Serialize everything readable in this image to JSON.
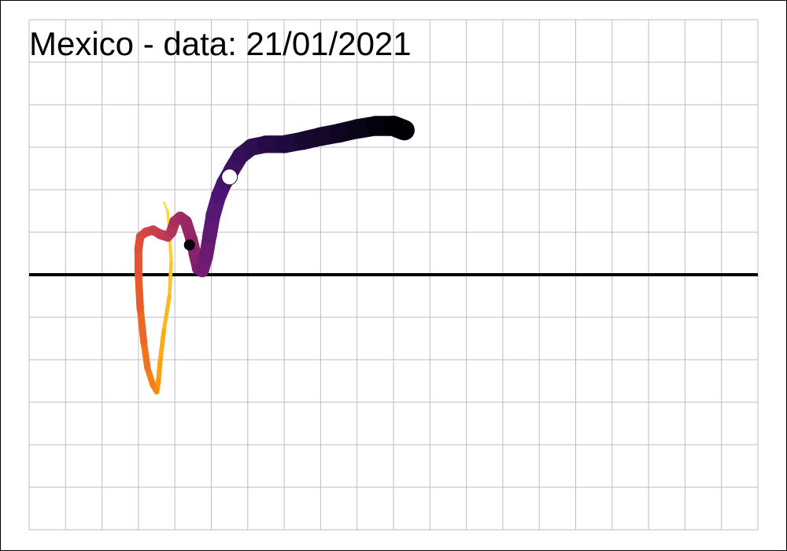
{
  "chart_data": {
    "type": "line",
    "title": "Mexico  - data: 21/01/2021",
    "xlim": [
      0,
      20
    ],
    "ylim": [
      -6,
      6
    ],
    "grid": true,
    "x_gridlines": [
      0,
      1,
      2,
      3,
      4,
      5,
      6,
      7,
      8,
      9,
      10,
      11,
      12,
      13,
      14,
      15,
      16,
      17,
      18,
      19,
      20
    ],
    "y_gridlines": [
      -6,
      -5,
      -4,
      -3,
      -2,
      -1,
      0,
      1,
      2,
      3,
      4,
      5,
      6
    ],
    "baseline_y": 0,
    "colormap": [
      "#fce34b",
      "#fba10b",
      "#e8582c",
      "#c13a52",
      "#8a226b",
      "#4f1576",
      "#1e0b3e",
      "#000004"
    ],
    "series": [
      {
        "points": [
          [
            3.7,
            1.7
          ],
          [
            3.8,
            1.5
          ],
          [
            3.85,
            1.0
          ],
          [
            3.9,
            0.3
          ],
          [
            3.85,
            -0.5
          ],
          [
            3.7,
            -1.3
          ],
          [
            3.6,
            -2.0
          ],
          [
            3.55,
            -2.5
          ],
          [
            3.5,
            -2.75
          ],
          [
            3.4,
            -2.6
          ],
          [
            3.25,
            -2.2
          ],
          [
            3.15,
            -1.6
          ],
          [
            3.05,
            -0.8
          ],
          [
            3.0,
            0.0
          ],
          [
            3.0,
            0.6
          ],
          [
            3.05,
            0.9
          ],
          [
            3.2,
            1.0
          ],
          [
            3.4,
            1.05
          ],
          [
            3.6,
            0.95
          ],
          [
            3.8,
            0.9
          ],
          [
            3.9,
            1.0
          ],
          [
            4.0,
            1.25
          ],
          [
            4.15,
            1.35
          ],
          [
            4.3,
            1.25
          ],
          [
            4.45,
            0.85
          ],
          [
            4.55,
            0.5
          ],
          [
            4.65,
            0.15
          ],
          [
            4.75,
            0.1
          ],
          [
            4.85,
            0.4
          ],
          [
            4.95,
            0.9
          ],
          [
            5.05,
            1.4
          ],
          [
            5.2,
            1.85
          ],
          [
            5.35,
            2.15
          ],
          [
            5.55,
            2.45
          ],
          [
            5.8,
            2.8
          ],
          [
            6.1,
            3.0
          ],
          [
            6.5,
            3.07
          ],
          [
            7.0,
            3.07
          ],
          [
            7.5,
            3.15
          ],
          [
            8.0,
            3.25
          ],
          [
            8.5,
            3.33
          ],
          [
            9.0,
            3.43
          ],
          [
            9.5,
            3.5
          ],
          [
            10.0,
            3.5
          ],
          [
            10.3,
            3.4
          ]
        ]
      }
    ],
    "markers": [
      {
        "x": 4.4,
        "y": 0.7,
        "color": "#000000"
      },
      {
        "x": 5.5,
        "y": 2.3,
        "color": "#ffffff"
      }
    ]
  }
}
